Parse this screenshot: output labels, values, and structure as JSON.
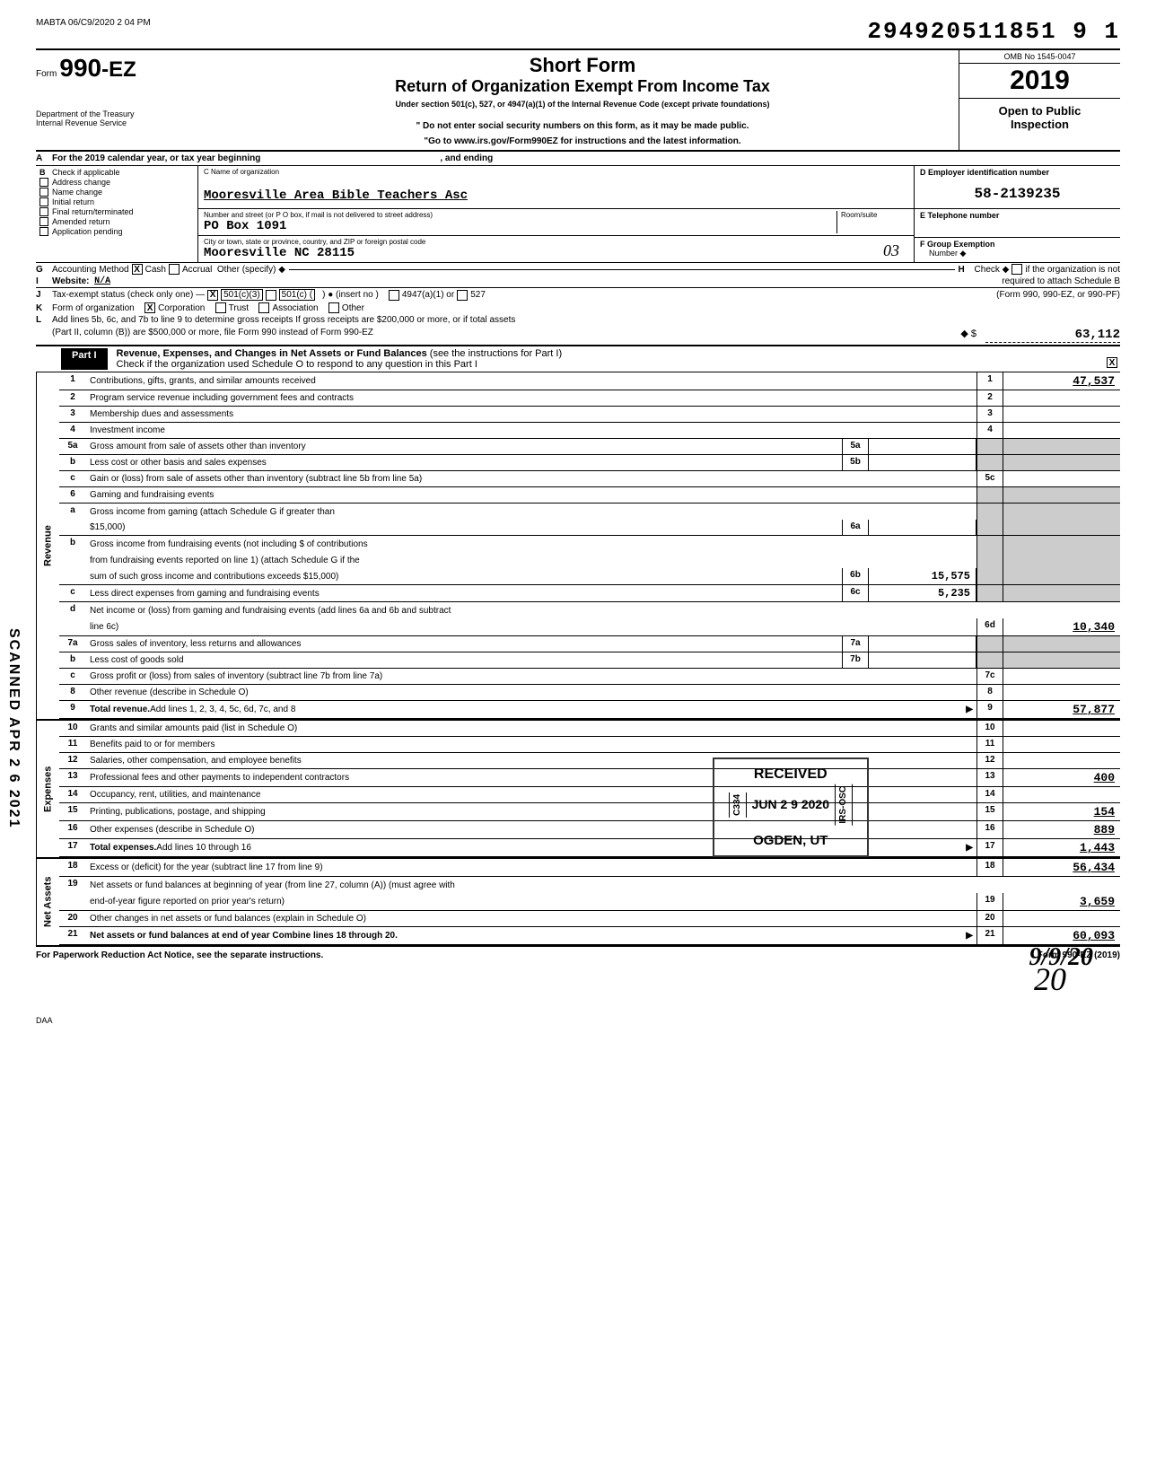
{
  "top": {
    "prep": "MABTA 06/C9/2020 2 04 PM",
    "big_number": "294920511851 9  1"
  },
  "header": {
    "form_prefix": "Form",
    "form_number": "990-EZ",
    "title_main": "Short Form",
    "title_sub": "Return of Organization Exempt From Income Tax",
    "under": "Under section 501(c), 527, or 4947(a)(1) of the Internal Revenue Code (except private foundations)",
    "line1": "\" Do not enter social security numbers on this form, as it may be made public.",
    "line2": "\"Go to www.irs.gov/Form990EZ for instructions and the latest information.",
    "dept": "Department of the Treasury",
    "irs": "Internal Revenue Service",
    "omb": "OMB No 1545-0047",
    "year": "2019",
    "open_public": "Open to Public",
    "inspection": "Inspection"
  },
  "rowA": {
    "lbl": "A",
    "text1": "For the 2019 calendar year, or tax year beginning",
    "text2": ", and ending"
  },
  "sectionB": {
    "lbl": "B",
    "check_label": "Check if applicable",
    "checks": [
      "Address change",
      "Name change",
      "Initial return",
      "Final return/terminated",
      "Amended return",
      "Application pending"
    ],
    "C_label": "C  Name of organization",
    "org_name": "Mooresville Area Bible Teachers Asc",
    "addr_label": "Number and street (or P O  box, if mail is not delivered to street address)",
    "addr": "PO Box 1091",
    "room_label": "Room/suite",
    "city_label": "City or town, state or province, country, and ZIP or foreign postal code",
    "city": "Mooresville           NC  28115",
    "D_label": "D  Employer identification number",
    "ein": "58-2139235",
    "E_label": "E  Telephone number",
    "F_label": "F  Group Exemption",
    "F_sub": "Number  ◆",
    "hand_03": "03"
  },
  "rowG": {
    "lbl": "G",
    "text": "Accounting Method",
    "cash": "Cash",
    "accrual": "Accrual",
    "other": "Other (specify) ◆",
    "H_lbl": "H",
    "H_text": "Check ◆",
    "H_text2": "if the organization is not",
    "H_text3": "required to attach Schedule B"
  },
  "rowI": {
    "lbl": "I",
    "text": "Website:",
    "val": "N/A",
    "right": "(Form 990, 990-EZ, or 990-PF)"
  },
  "rowJ": {
    "lbl": "J",
    "text": "Tax-exempt status (check only one) —",
    "opts": [
      "501(c)(3)",
      "501(c) (",
      ")  ● (insert no )",
      "4947(a)(1) or",
      "527"
    ]
  },
  "rowK": {
    "lbl": "K",
    "text": "Form of organization",
    "opts": [
      "Corporation",
      "Trust",
      "Association",
      "Other"
    ]
  },
  "rowL": {
    "lbl": "L",
    "text1": "Add lines 5b, 6c, and 7b to line 9 to determine gross receipts  If gross receipts are $200,000 or more, or if total assets",
    "text2": "(Part II, column (B)) are $500,000 or more, file Form 990 instead of Form 990-EZ",
    "arrow": "◆ $",
    "total": "63,112"
  },
  "partI": {
    "label": "Part I",
    "title": "Revenue, Expenses, and Changes in Net Assets or Fund Balances",
    "subtitle": "(see the instructions for Part I)",
    "check_line": "Check if the organization used Schedule O to respond to any question in this Part I"
  },
  "sections": {
    "revenue": "Revenue",
    "expenses": "Expenses",
    "netassets": "Net Assets"
  },
  "rows": [
    {
      "n": "1",
      "desc": "Contributions, gifts, grants, and similar amounts received",
      "en": "1",
      "ev": "47,537"
    },
    {
      "n": "2",
      "desc": "Program service revenue including government fees and contracts",
      "en": "2",
      "ev": ""
    },
    {
      "n": "3",
      "desc": "Membership dues and assessments",
      "en": "3",
      "ev": ""
    },
    {
      "n": "4",
      "desc": "Investment income",
      "en": "4",
      "ev": ""
    },
    {
      "n": "5a",
      "desc": "Gross amount from sale of assets other than inventory",
      "mn": "5a",
      "mv": "",
      "shaded_end": true
    },
    {
      "n": "b",
      "desc": "Less  cost or other basis and sales expenses",
      "mn": "5b",
      "mv": "",
      "shaded_end": true
    },
    {
      "n": "c",
      "desc": "Gain or (loss) from sale of assets other than inventory (subtract line 5b from line 5a)",
      "en": "5c",
      "ev": ""
    },
    {
      "n": "6",
      "desc": "Gaming and fundraising events",
      "shaded_end": true,
      "shaded_mid": true
    },
    {
      "n": "a",
      "desc": "Gross income from gaming (attach Schedule G if greater than",
      "shaded_end": true,
      "shaded_mid": true,
      "nobot": true
    },
    {
      "n": "",
      "desc": "$15,000)",
      "mn": "6a",
      "mv": "",
      "shaded_end": true
    },
    {
      "n": "b",
      "desc": "Gross income from fundraising events (not including  $                                           of contributions",
      "shaded_end": true,
      "shaded_mid": true,
      "nobot": true
    },
    {
      "n": "",
      "desc": "from fundraising events reported on line 1) (attach Schedule G if the",
      "shaded_end": true,
      "shaded_mid": true,
      "nobot": true
    },
    {
      "n": "",
      "desc": "sum of such gross income and contributions exceeds $15,000)",
      "mn": "6b",
      "mv": "15,575",
      "shaded_end": true
    },
    {
      "n": "c",
      "desc": "Less  direct expenses from gaming and fundraising events",
      "mn": "6c",
      "mv": "5,235",
      "shaded_end": true
    },
    {
      "n": "d",
      "desc": "Net income or (loss) from gaming and fundraising events (add lines 6a and 6b and subtract",
      "shaded_mid": true,
      "nobot": true
    },
    {
      "n": "",
      "desc": "line 6c)",
      "en": "6d",
      "ev": "10,340"
    },
    {
      "n": "7a",
      "desc": "Gross sales of inventory, less returns and allowances",
      "mn": "7a",
      "mv": "",
      "shaded_end": true
    },
    {
      "n": "b",
      "desc": "Less  cost of goods sold",
      "mn": "7b",
      "mv": "",
      "shaded_end": true
    },
    {
      "n": "c",
      "desc": "Gross profit or (loss) from sales of inventory (subtract line 7b from line 7a)",
      "en": "7c",
      "ev": ""
    },
    {
      "n": "8",
      "desc": "Other revenue (describe in Schedule O)",
      "en": "8",
      "ev": ""
    },
    {
      "n": "9",
      "desc": "Total revenue. Add lines 1, 2, 3, 4, 5c, 6d, 7c, and 8",
      "arrow": true,
      "en": "9",
      "ev": "57,877",
      "bold": true
    }
  ],
  "exp_rows": [
    {
      "n": "10",
      "desc": "Grants and similar amounts paid (list in Schedule O)",
      "en": "10",
      "ev": ""
    },
    {
      "n": "11",
      "desc": "Benefits paid to or for members",
      "en": "11",
      "ev": ""
    },
    {
      "n": "12",
      "desc": "Salaries, other compensation, and employee benefits",
      "en": "12",
      "ev": ""
    },
    {
      "n": "13",
      "desc": "Professional fees and other payments to independent contractors",
      "en": "13",
      "ev": "400"
    },
    {
      "n": "14",
      "desc": "Occupancy, rent, utilities, and maintenance",
      "en": "14",
      "ev": ""
    },
    {
      "n": "15",
      "desc": "Printing, publications, postage, and shipping",
      "en": "15",
      "ev": "154"
    },
    {
      "n": "16",
      "desc": "Other expenses (describe in Schedule O)",
      "en": "16",
      "ev": "889"
    },
    {
      "n": "17",
      "desc": "Total expenses. Add lines 10 through 16",
      "arrow": true,
      "en": "17",
      "ev": "1,443",
      "bold": true
    }
  ],
  "na_rows": [
    {
      "n": "18",
      "desc": "Excess or (deficit) for the year (subtract line 17 from line 9)",
      "en": "18",
      "ev": "56,434"
    },
    {
      "n": "19",
      "desc": "Net assets or fund balances at beginning of year (from line 27, column (A)) (must agree with",
      "nobot": true
    },
    {
      "n": "",
      "desc": "end-of-year figure reported on prior year's return)",
      "en": "19",
      "ev": "3,659"
    },
    {
      "n": "20",
      "desc": "Other changes in net assets or fund balances (explain in Schedule O)",
      "en": "20",
      "ev": ""
    },
    {
      "n": "21",
      "desc": "Net assets or fund balances at end of year  Combine lines 18 through 20",
      "arrow": true,
      "en": "21",
      "ev": "60,093",
      "bold": true
    }
  ],
  "stamp": {
    "received": "RECEIVED",
    "date": "JUN 2 9 2020",
    "ogden": "OGDEN, UT",
    "c334": "C334",
    "irs": "IRS-OSC"
  },
  "footer": {
    "paperwork": "For Paperwork Reduction Act Notice, see the separate instructions.",
    "form": "Form 990-EZ (2019)",
    "daa": "DAA",
    "sig": "9/9/20",
    "sig2": "20"
  },
  "scanned": "SCANNED  APR 2 6 2021"
}
